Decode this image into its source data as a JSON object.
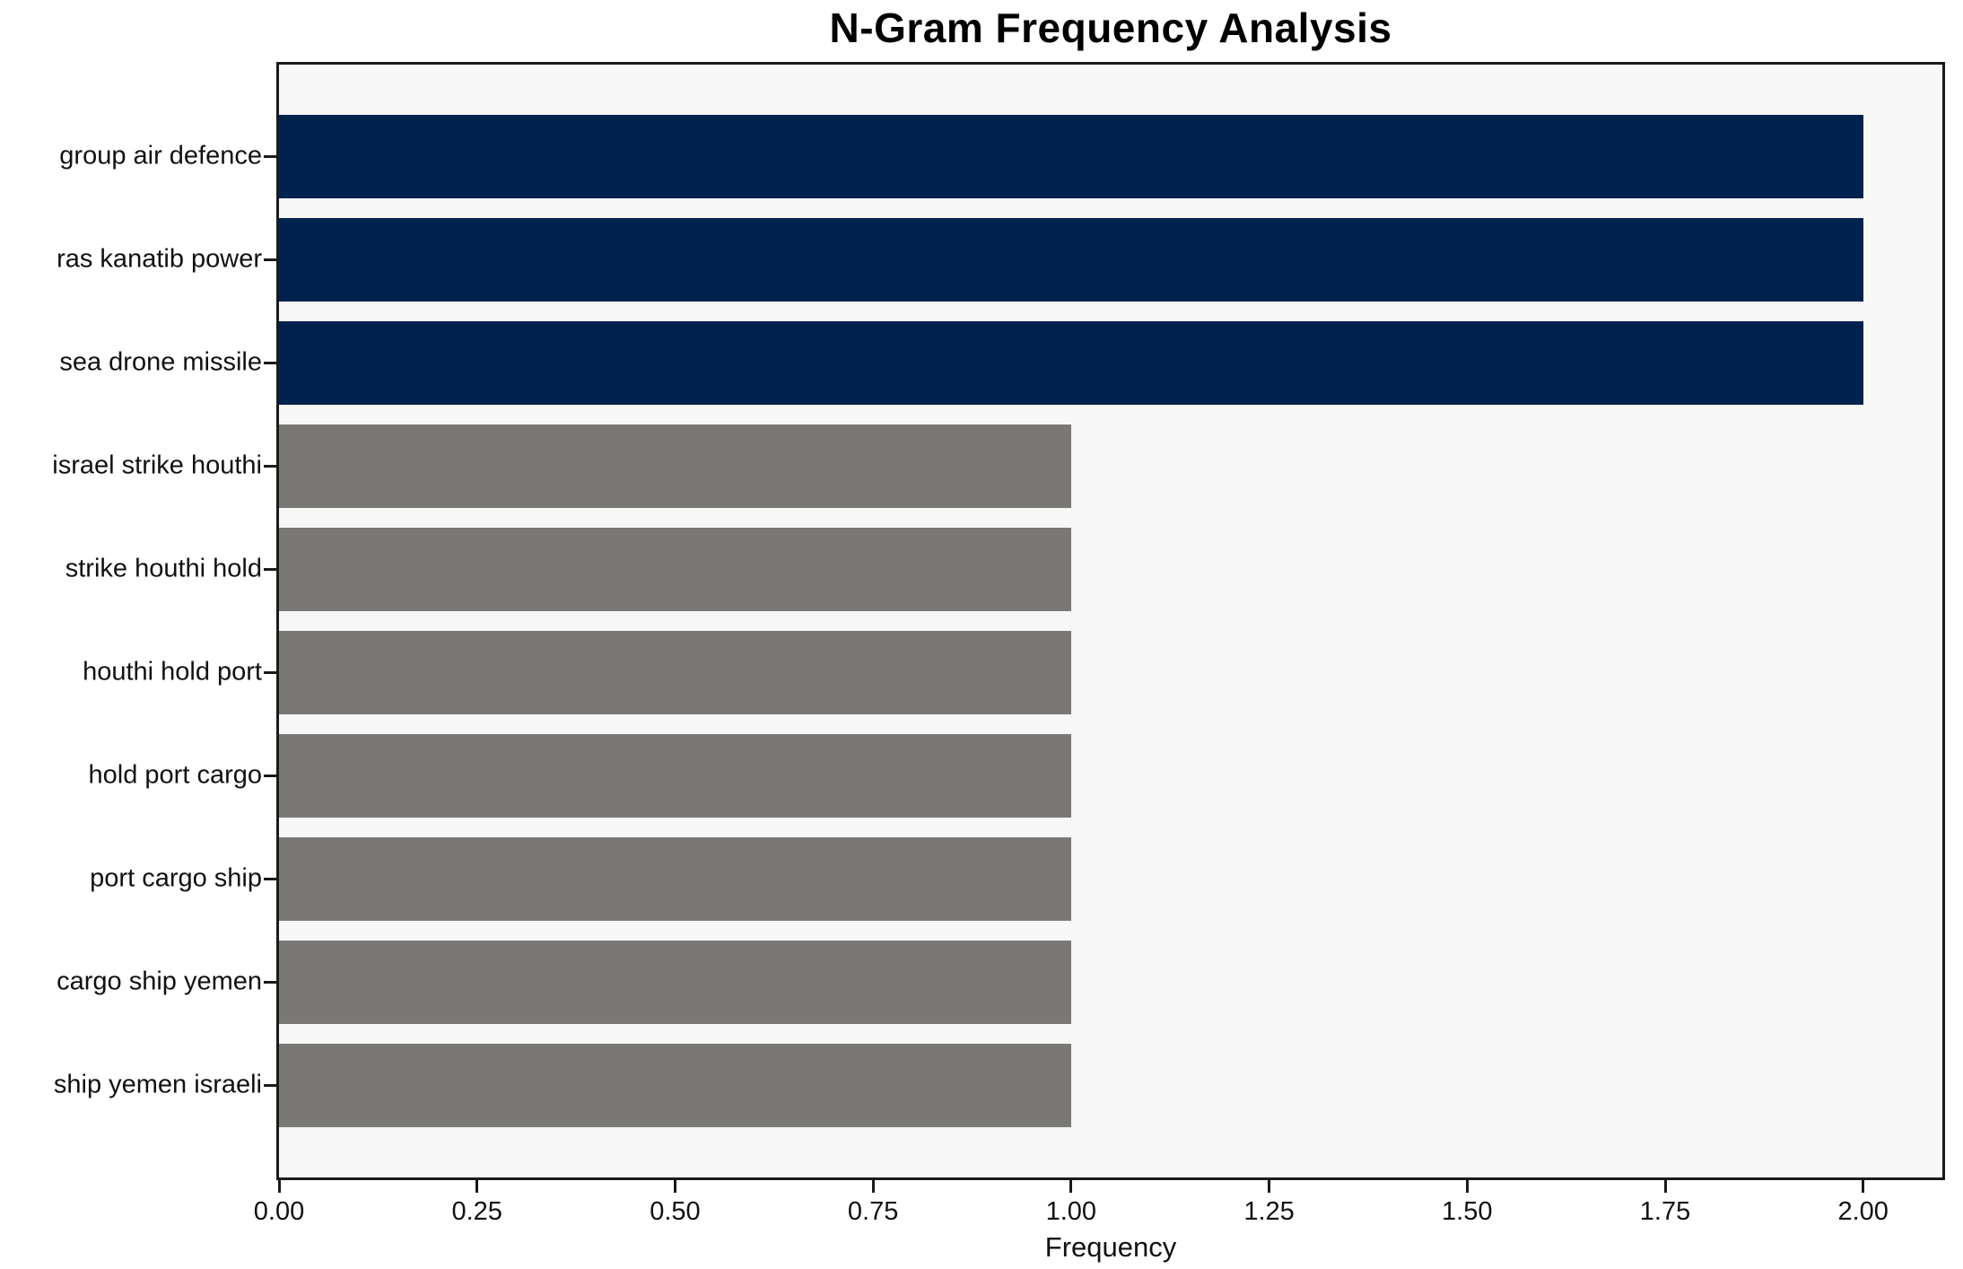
{
  "chart_data": {
    "type": "bar",
    "orientation": "horizontal",
    "title": "N-Gram Frequency Analysis",
    "xlabel": "Frequency",
    "ylabel": "",
    "categories": [
      "group air defence",
      "ras kanatib power",
      "sea drone missile",
      "israel strike houthi",
      "strike houthi hold",
      "houthi hold port",
      "hold port cargo",
      "port cargo ship",
      "cargo ship yemen",
      "ship yemen israeli"
    ],
    "values": [
      2,
      2,
      2,
      1,
      1,
      1,
      1,
      1,
      1,
      1
    ],
    "bar_colors": [
      "#00224e",
      "#00224e",
      "#00224e",
      "#7a7875",
      "#7a7875",
      "#7a7875",
      "#7a7875",
      "#7a7875",
      "#7a7875",
      "#7a7875"
    ],
    "xlim": [
      0,
      2.1
    ],
    "xticks": [
      0.0,
      0.25,
      0.5,
      0.75,
      1.0,
      1.25,
      1.5,
      1.75,
      2.0
    ],
    "xtick_labels": [
      "0.00",
      "0.25",
      "0.50",
      "0.75",
      "1.00",
      "1.25",
      "1.50",
      "1.75",
      "2.00"
    ],
    "grid": false,
    "legend_position": "none",
    "colors": {
      "highlight_bar": "#00224e",
      "default_bar": "#7a7875",
      "plot_background": "#f7f7f7",
      "figure_background": "#ffffff",
      "spine": "#1a1a1a",
      "text": "#111111"
    }
  }
}
